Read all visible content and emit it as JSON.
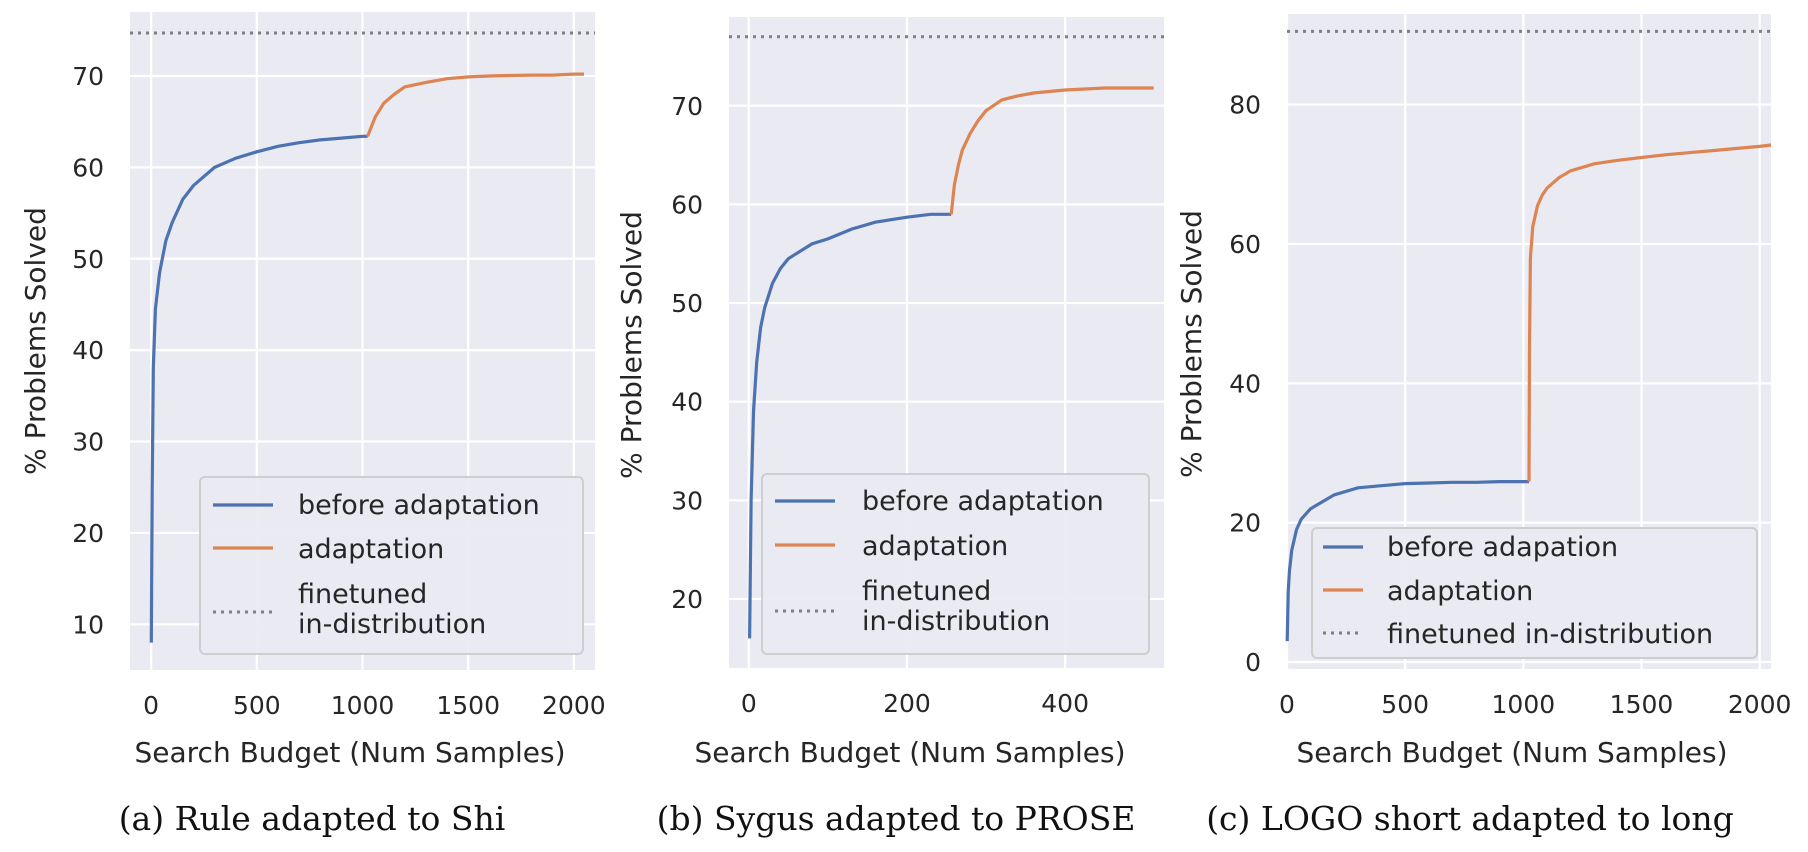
{
  "colors": {
    "before": "#4c72b0",
    "adaptation": "#dd8452",
    "finetuned": "#7f7f7f",
    "plot_bg": "#eaeaf2",
    "grid": "#ffffff"
  },
  "chart_data": [
    {
      "type": "line",
      "caption": "(a) Rule adapted to Shi",
      "xlabel": "Search Budget (Num Samples)",
      "ylabel": "% Problems Solved",
      "xlim": [
        -100,
        2100
      ],
      "ylim": [
        5,
        77
      ],
      "xticks": [
        0,
        500,
        1000,
        1500,
        2000
      ],
      "yticks": [
        10,
        20,
        30,
        40,
        50,
        60,
        70
      ],
      "grid": true,
      "legend_position": "lower-right",
      "legend": [
        "before adaptation",
        "adaptation",
        "finetuned\nin-distribution"
      ],
      "hline": {
        "name": "finetuned\nin-distribution",
        "y": 74.7
      },
      "series": [
        {
          "name": "before adaptation",
          "x": [
            1,
            5,
            10,
            20,
            40,
            70,
            100,
            150,
            200,
            300,
            400,
            500,
            600,
            700,
            800,
            900,
            1000,
            1024
          ],
          "y": [
            8,
            25,
            38,
            44.5,
            48.5,
            52,
            54,
            56.5,
            58,
            60,
            61,
            61.7,
            62.3,
            62.7,
            63,
            63.2,
            63.4,
            63.4
          ]
        },
        {
          "name": "adaptation",
          "x": [
            1024,
            1060,
            1100,
            1150,
            1200,
            1300,
            1400,
            1500,
            1600,
            1700,
            1800,
            1900,
            2000,
            2048
          ],
          "y": [
            63.4,
            65.5,
            67,
            68,
            68.8,
            69.3,
            69.7,
            69.9,
            70,
            70.05,
            70.1,
            70.1,
            70.2,
            70.2
          ]
        }
      ]
    },
    {
      "type": "line",
      "caption": "(b) Sygus adapted to PROSE",
      "xlabel": "Search Budget (Num Samples)",
      "ylabel": "% Problems Solved",
      "xlim": [
        -25,
        525
      ],
      "ylim": [
        13,
        79
      ],
      "xticks": [
        0,
        200,
        400
      ],
      "yticks": [
        20,
        30,
        40,
        50,
        60,
        70
      ],
      "grid": true,
      "legend_position": "lower-right",
      "legend": [
        "before adaptation",
        "adaptation",
        "finetuned\nin-distribution"
      ],
      "hline": {
        "name": "finetuned\nin-distribution",
        "y": 77
      },
      "series": [
        {
          "name": "before adaptation",
          "x": [
            1,
            3,
            6,
            10,
            15,
            20,
            30,
            40,
            50,
            60,
            80,
            100,
            130,
            160,
            200,
            230,
            256
          ],
          "y": [
            16,
            30,
            39,
            44,
            47.5,
            49.5,
            52,
            53.5,
            54.5,
            55,
            56,
            56.5,
            57.5,
            58.2,
            58.7,
            59,
            59
          ]
        },
        {
          "name": "adaptation",
          "x": [
            256,
            260,
            265,
            270,
            280,
            290,
            300,
            320,
            340,
            360,
            400,
            450,
            512
          ],
          "y": [
            59,
            62,
            64,
            65.5,
            67.2,
            68.5,
            69.5,
            70.6,
            71,
            71.3,
            71.6,
            71.8,
            71.8
          ]
        }
      ]
    },
    {
      "type": "line",
      "caption": "(c) LOGO short adapted to long",
      "xlabel": "Search Budget (Num Samples)",
      "ylabel": "% Problems Solved",
      "xlim": [
        0,
        2048
      ],
      "ylim": [
        -1,
        93
      ],
      "xticks": [
        0,
        500,
        1000,
        1500,
        2000
      ],
      "yticks": [
        0,
        20,
        40,
        60,
        80
      ],
      "grid": true,
      "legend_position": "lower-left",
      "legend": [
        "before adapation",
        "adaptation",
        "finetuned in-distribution"
      ],
      "hline": {
        "name": "finetuned in-distribution",
        "y": 90.5
      },
      "series": [
        {
          "name": "before adapation",
          "x": [
            1,
            5,
            10,
            20,
            40,
            60,
            100,
            150,
            200,
            300,
            400,
            500,
            600,
            700,
            800,
            900,
            1000,
            1024
          ],
          "y": [
            3,
            10,
            13,
            16,
            19,
            20.5,
            22,
            23,
            24,
            25,
            25.3,
            25.6,
            25.7,
            25.8,
            25.8,
            25.9,
            25.9,
            25.9
          ]
        },
        {
          "name": "adaptation",
          "x": [
            1024,
            1026,
            1030,
            1040,
            1060,
            1080,
            1100,
            1150,
            1200,
            1300,
            1400,
            1500,
            1600,
            1700,
            1800,
            1900,
            2000,
            2048
          ],
          "y": [
            25.9,
            45,
            58,
            62.5,
            65.5,
            67,
            68,
            69.5,
            70.5,
            71.5,
            72,
            72.4,
            72.8,
            73.1,
            73.4,
            73.7,
            74,
            74.2
          ]
        }
      ]
    }
  ]
}
